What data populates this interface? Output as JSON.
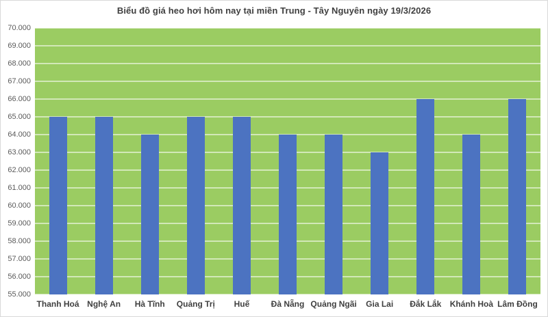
{
  "chart_data": {
    "type": "bar",
    "title": "Biểu đồ giá heo hơi hôm nay tại miền Trung - Tây Nguyên ngày 19/3/2026",
    "categories": [
      "Thanh Hoá",
      "Nghệ An",
      "Hà Tĩnh",
      "Quảng Trị",
      "Huế",
      "Đà Nẵng",
      "Quảng Ngãi",
      "Gia Lai",
      "Đắk Lắk",
      "Khánh Hoà",
      "Lâm Đồng"
    ],
    "values": [
      65000,
      65000,
      64000,
      65000,
      65000,
      64000,
      64000,
      63000,
      66000,
      64000,
      66000
    ],
    "y_ticks": [
      "70.000",
      "69.000",
      "68.000",
      "67.000",
      "66.000",
      "65.000",
      "64.000",
      "63.000",
      "62.000",
      "61.000",
      "60.000",
      "59.000",
      "58.000",
      "57.000",
      "56.000",
      "55.000"
    ],
    "ylim": [
      55000,
      70000
    ],
    "y_step": 1000,
    "xlabel": "",
    "ylabel": "",
    "legend": "none",
    "grid": "horizontal",
    "colors": {
      "bar": "#4C73C1",
      "plot_background": "#9BCC62",
      "gridline": "rgba(255,255,255,0.55)",
      "title_text": "#3f3f3f",
      "tick_text": "#595959",
      "category_text": "#3f3f3f",
      "frame_border": "#d9d9d9"
    }
  }
}
